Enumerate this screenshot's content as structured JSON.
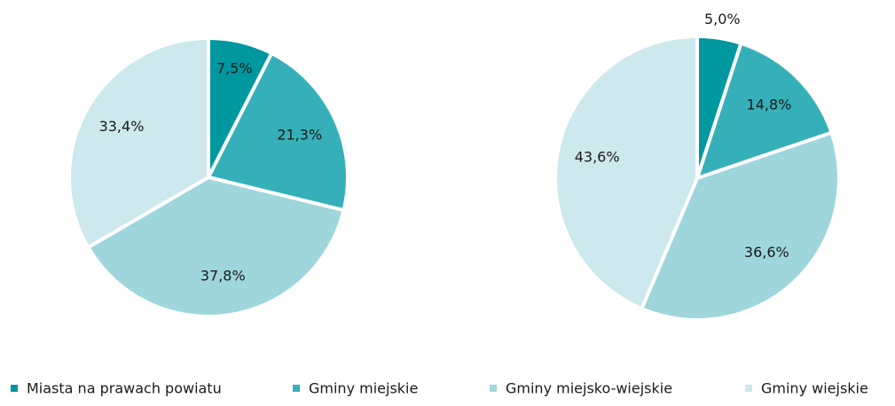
{
  "chart_data": [
    {
      "type": "pie",
      "categories": [
        "Miasta na prawach powiatu",
        "Gminy miejskie",
        "Gminy miejsko-wiejskie",
        "Gminy wiejskie"
      ],
      "colors": [
        "#00989f",
        "#36b0b8",
        "#9ed6dc",
        "#cde9ed"
      ],
      "values": [
        7.5,
        21.3,
        37.8,
        33.4
      ],
      "value_labels": [
        "7,5%",
        "21,3%",
        "37,8%",
        "33,4%"
      ]
    },
    {
      "type": "pie",
      "values": [
        5.0,
        14.8,
        36.6,
        43.6
      ],
      "value_labels": [
        "5,0%",
        "14,8%",
        "36,6%",
        "43,6%"
      ]
    }
  ]
}
